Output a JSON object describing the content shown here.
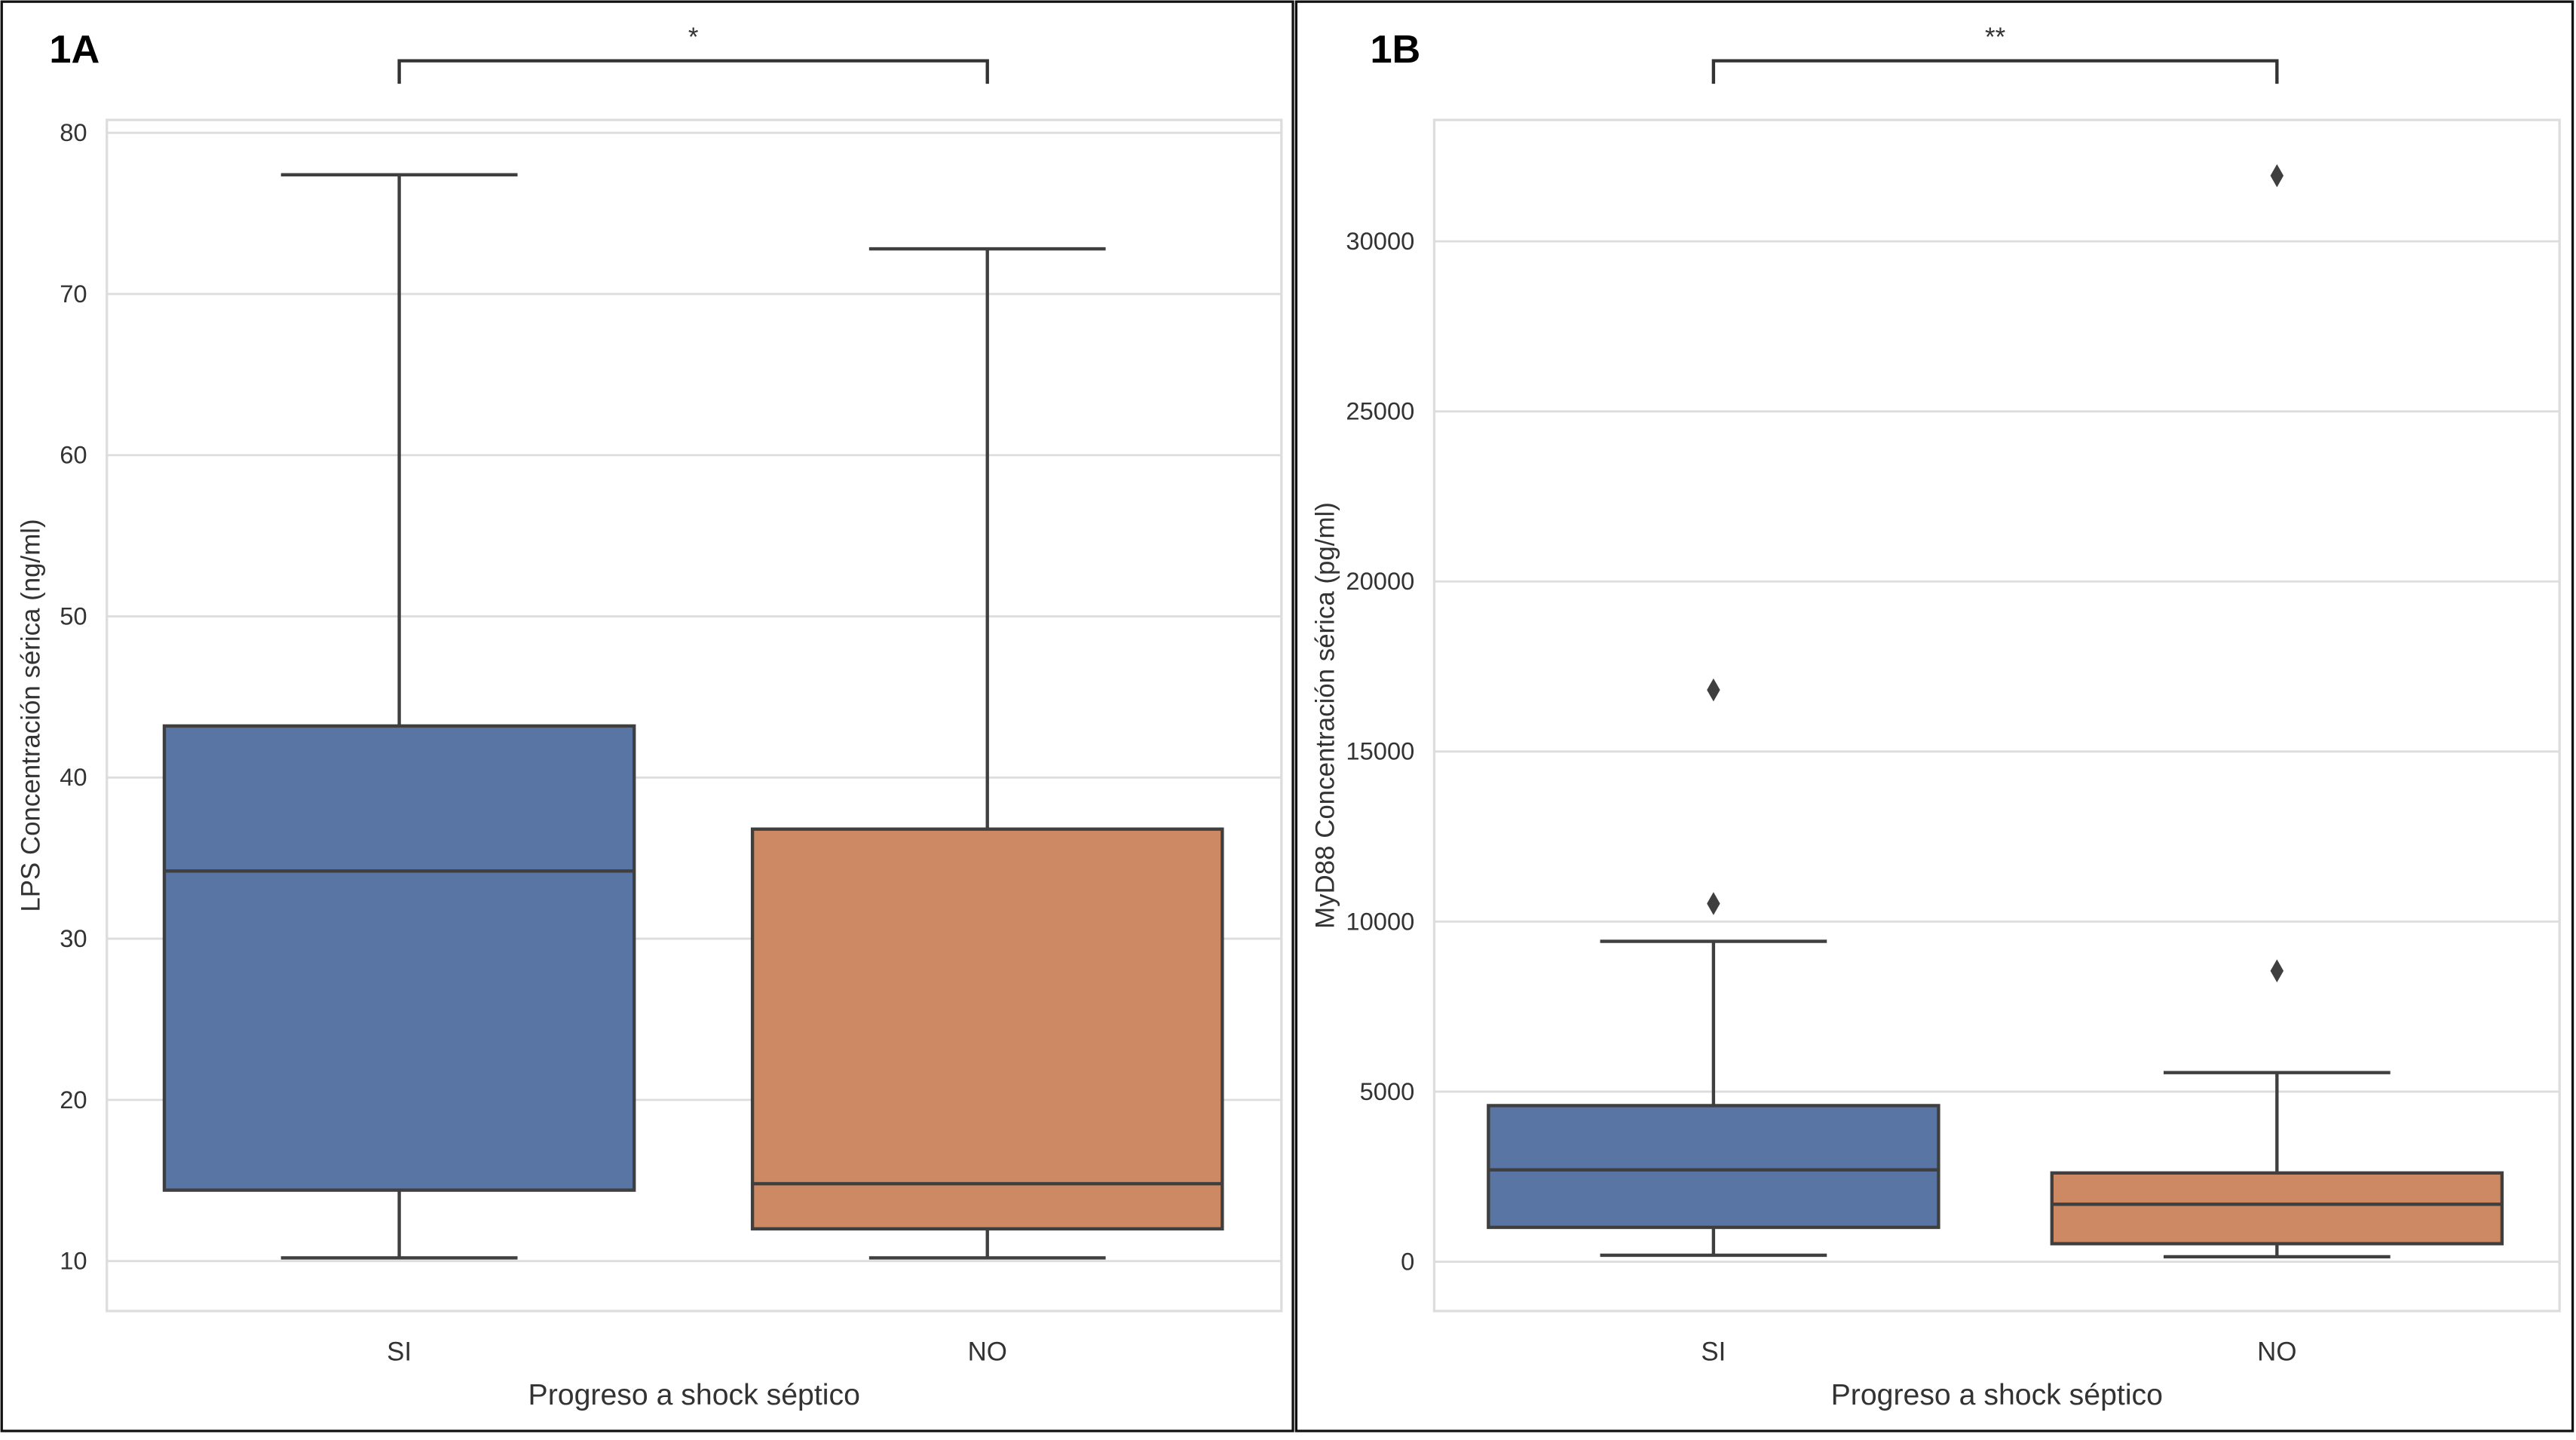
{
  "chart_data": [
    {
      "type": "box",
      "panel_label": "1A",
      "xlabel": "Progreso a shock séptico",
      "ylabel": "LPS Concentración sérica (ng/ml)",
      "categories": [
        "SI",
        "NO"
      ],
      "colors": [
        "#5875a4",
        "#cc8963"
      ],
      "ylim": [
        6.9,
        80.8
      ],
      "yticks": [
        10,
        20,
        30,
        40,
        50,
        60,
        70,
        80
      ],
      "grid": true,
      "boxes": [
        {
          "whisker_low": 10.2,
          "q1": 14.4,
          "median": 34.2,
          "q3": 43.2,
          "whisker_high": 77.4,
          "outliers": []
        },
        {
          "whisker_low": 10.2,
          "q1": 12.0,
          "median": 14.8,
          "q3": 36.8,
          "whisker_high": 72.8,
          "outliers": []
        }
      ],
      "significance": "*"
    },
    {
      "type": "box",
      "panel_label": "1B",
      "xlabel": "Progreso a shock séptico",
      "ylabel": "MyD88 Concentración sérica (pg/ml)",
      "categories": [
        "SI",
        "NO"
      ],
      "colors": [
        "#5875a4",
        "#cc8963"
      ],
      "ylim": [
        -1450,
        33570
      ],
      "yticks": [
        0,
        5000,
        10000,
        15000,
        20000,
        25000,
        30000
      ],
      "grid": true,
      "boxes": [
        {
          "whisker_low": 190,
          "q1": 1010,
          "median": 2700,
          "q3": 4590,
          "whisker_high": 9420,
          "outliers": [
            10530,
            16810
          ]
        },
        {
          "whisker_low": 145,
          "q1": 530,
          "median": 1690,
          "q3": 2610,
          "whisker_high": 5560,
          "outliers": [
            8550,
            31930
          ]
        }
      ],
      "significance": "**"
    }
  ]
}
